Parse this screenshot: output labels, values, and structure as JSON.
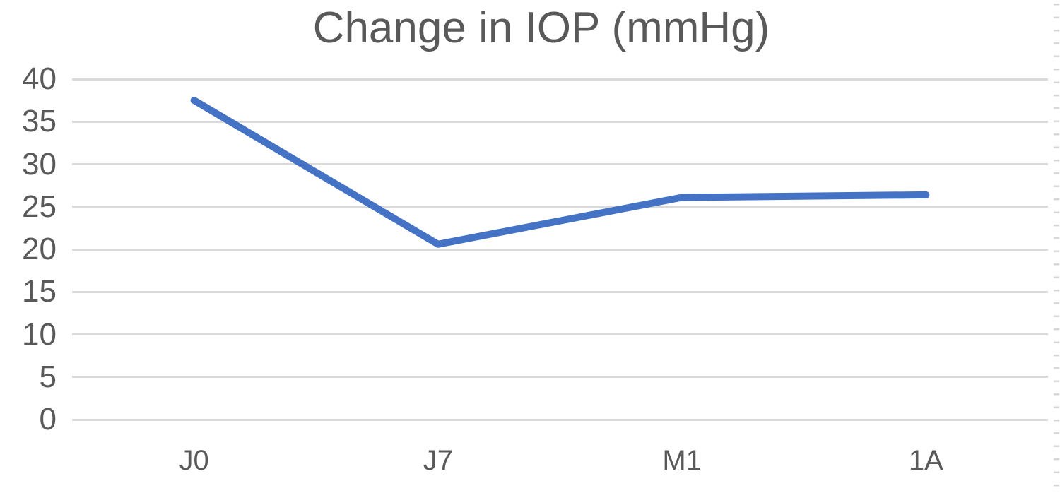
{
  "chart": {
    "title": "Change in IOP (mmHg)"
  },
  "chart_data": {
    "type": "line",
    "title": "Change in IOP (mmHg)",
    "categories": [
      "J0",
      "J7",
      "M1",
      "1A"
    ],
    "series": [
      {
        "name": "Change in IOP",
        "values": [
          37.5,
          20.6,
          26.1,
          26.4
        ]
      }
    ],
    "xlabel": "",
    "ylabel": "",
    "ylim": [
      0,
      40
    ],
    "ytick_step": 5,
    "yticks": [
      "40",
      "35",
      "30",
      "25",
      "20",
      "15",
      "10",
      "5",
      "0"
    ],
    "grid": "horizontal",
    "legend_position": "none",
    "colors": {
      "line": "#4472C4",
      "gridline": "#D9D9D9",
      "text": "#595959",
      "background": "#FFFFFF"
    }
  }
}
